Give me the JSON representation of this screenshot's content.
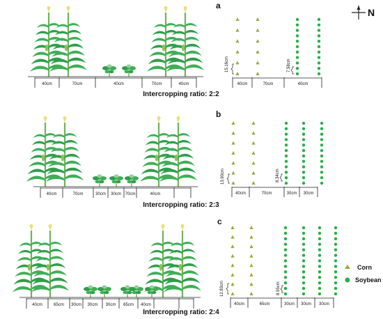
{
  "compass": {
    "label": "N"
  },
  "legend": {
    "corn": {
      "label": "Corn",
      "color": "#9aaa3a"
    },
    "soybean": {
      "label": "Soybean",
      "color": "#2aae4a"
    }
  },
  "colors": {
    "plant_leaf": "#2f9e4a",
    "plant_leaf_light": "#8fd39a",
    "stalk": "#6fb35b",
    "tassel": "#e9df78",
    "line": "#222222"
  },
  "panels": [
    {
      "letter": "a",
      "caption": "Intercropping ratio: 2:2",
      "side_dims": [
        "40cm",
        "70cm",
        "40cm",
        "70cm",
        "40cm"
      ],
      "plan_dims": [
        "40cm",
        "70cm",
        "40cm"
      ],
      "corn_spacing": "15.16cm",
      "soy_spacing": "7.58cm",
      "soy_rows": 2
    },
    {
      "letter": "b",
      "caption": "Intercropping ratio: 2:3",
      "side_dims": [
        "40cm",
        "70cm",
        "30cm",
        "30cm",
        "70cm",
        "40cm"
      ],
      "plan_dims": [
        "40cm",
        "70cm",
        "30cm",
        "30cm"
      ],
      "corn_spacing": "13.90cm",
      "soy_spacing": "8.34cm",
      "soy_rows": 3
    },
    {
      "letter": "c",
      "caption": "Intercropping ratio: 2:4",
      "side_dims": [
        "40cm",
        "65cm",
        "30cm",
        "30cm",
        "30cm",
        "65cm",
        "40cm"
      ],
      "plan_dims": [
        "40cm",
        "65cm",
        "30cm",
        "30cm",
        "30cm"
      ],
      "corn_spacing": "12.83cm",
      "soy_spacing": "8.55cm",
      "soy_rows": 4
    }
  ]
}
